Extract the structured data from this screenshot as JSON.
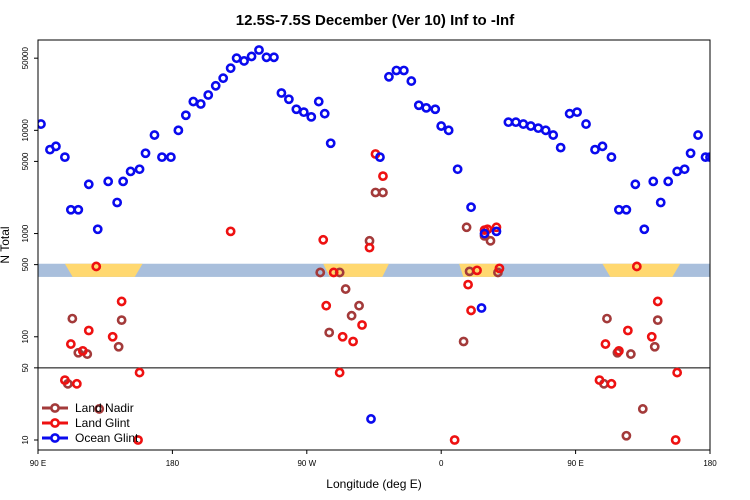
{
  "chart_data": {
    "type": "scatter",
    "title": "12.5S-7.5S December (Ver 10)   Inf to -Inf",
    "xlabel": "Longitude (deg E)",
    "ylabel": "N Total",
    "x_ticks": [
      {
        "value": 90,
        "label": "90 E"
      },
      {
        "value": 180,
        "label": "180"
      },
      {
        "value": 270,
        "label": "90 W"
      },
      {
        "value": 360,
        "label": "0"
      },
      {
        "value": 450,
        "label": "90 E"
      },
      {
        "value": 540,
        "label": "180"
      }
    ],
    "y_ticks": [
      {
        "value": 10,
        "label": "10"
      },
      {
        "value": 50,
        "label": "50"
      },
      {
        "value": 100,
        "label": "100"
      },
      {
        "value": 500,
        "label": "500"
      },
      {
        "value": 1000,
        "label": "1000"
      },
      {
        "value": 5000,
        "label": "5000"
      },
      {
        "value": 10000,
        "label": "10000"
      },
      {
        "value": 50000,
        "label": "50000"
      }
    ],
    "xlim": [
      90,
      540
    ],
    "ylim": [
      8,
      75000
    ],
    "yscale": "log",
    "reference_line": 50,
    "band": {
      "ymin": 380,
      "ymax": 510,
      "color": "#a9bfdc"
    },
    "land_fill_color": "#ffd870",
    "land_regions": [
      {
        "x0": 108,
        "x1": 160
      },
      {
        "x0": 281,
        "x1": 325
      },
      {
        "x0": 372,
        "x1": 400
      },
      {
        "x0": 468,
        "x1": 520
      }
    ],
    "series": [
      {
        "name": "Land Nadir",
        "color": "#a33a3a",
        "points": [
          [
            110,
            35
          ],
          [
            113,
            150
          ],
          [
            117,
            70
          ],
          [
            123,
            68
          ],
          [
            131,
            20
          ],
          [
            144,
            80
          ],
          [
            146,
            145
          ],
          [
            279,
            420
          ],
          [
            285,
            110
          ],
          [
            292,
            420
          ],
          [
            296,
            290
          ],
          [
            300,
            160
          ],
          [
            305,
            200
          ],
          [
            312,
            850
          ],
          [
            316,
            2500
          ],
          [
            321,
            2500
          ],
          [
            375,
            90
          ],
          [
            377,
            1150
          ],
          [
            379,
            430
          ],
          [
            389,
            950
          ],
          [
            393,
            850
          ],
          [
            398,
            420
          ],
          [
            469,
            35
          ],
          [
            471,
            150
          ],
          [
            478,
            70
          ],
          [
            484,
            11
          ],
          [
            487,
            68
          ],
          [
            495,
            20
          ],
          [
            503,
            80
          ],
          [
            505,
            145
          ]
        ]
      },
      {
        "name": "Land Glint",
        "color": "#ee1111",
        "points": [
          [
            108,
            38
          ],
          [
            112,
            85
          ],
          [
            116,
            35
          ],
          [
            120,
            73
          ],
          [
            124,
            115
          ],
          [
            129,
            480
          ],
          [
            140,
            100
          ],
          [
            146,
            220
          ],
          [
            157,
            10
          ],
          [
            158,
            45
          ],
          [
            219,
            1050
          ],
          [
            281,
            870
          ],
          [
            283,
            200
          ],
          [
            288,
            420
          ],
          [
            292,
            45
          ],
          [
            294,
            100
          ],
          [
            301,
            90
          ],
          [
            307,
            130
          ],
          [
            312,
            730
          ],
          [
            316,
            5900
          ],
          [
            321,
            3600
          ],
          [
            369,
            10
          ],
          [
            378,
            320
          ],
          [
            380,
            180
          ],
          [
            384,
            440
          ],
          [
            389,
            1080
          ],
          [
            391,
            1100
          ],
          [
            397,
            1150
          ],
          [
            399,
            460
          ],
          [
            466,
            38
          ],
          [
            470,
            85
          ],
          [
            474,
            35
          ],
          [
            479,
            73
          ],
          [
            485,
            115
          ],
          [
            491,
            480
          ],
          [
            501,
            100
          ],
          [
            505,
            220
          ],
          [
            517,
            10
          ],
          [
            518,
            45
          ]
        ]
      },
      {
        "name": "Ocean Glint",
        "color": "#0a0aee",
        "points": [
          [
            92,
            11500
          ],
          [
            98,
            6500
          ],
          [
            102,
            7000
          ],
          [
            108,
            5500
          ],
          [
            112,
            1700
          ],
          [
            117,
            1700
          ],
          [
            124,
            3000
          ],
          [
            130,
            1100
          ],
          [
            137,
            3200
          ],
          [
            143,
            2000
          ],
          [
            147,
            3200
          ],
          [
            152,
            4000
          ],
          [
            158,
            4200
          ],
          [
            162,
            6000
          ],
          [
            168,
            9000
          ],
          [
            173,
            5500
          ],
          [
            179,
            5500
          ],
          [
            184,
            10000
          ],
          [
            189,
            14000
          ],
          [
            194,
            19000
          ],
          [
            199,
            18000
          ],
          [
            204,
            22000
          ],
          [
            209,
            27000
          ],
          [
            214,
            32000
          ],
          [
            219,
            40000
          ],
          [
            223,
            50000
          ],
          [
            228,
            47000
          ],
          [
            233,
            52000
          ],
          [
            238,
            60000
          ],
          [
            243,
            51000
          ],
          [
            248,
            51000
          ],
          [
            253,
            23000
          ],
          [
            258,
            20000
          ],
          [
            263,
            16000
          ],
          [
            268,
            15000
          ],
          [
            273,
            13500
          ],
          [
            278,
            19000
          ],
          [
            282,
            14500
          ],
          [
            286,
            7500
          ],
          [
            313,
            16
          ],
          [
            319,
            5500
          ],
          [
            325,
            33000
          ],
          [
            330,
            38000
          ],
          [
            335,
            38000
          ],
          [
            340,
            30000
          ],
          [
            345,
            17500
          ],
          [
            350,
            16500
          ],
          [
            356,
            16000
          ],
          [
            360,
            11000
          ],
          [
            365,
            10000
          ],
          [
            371,
            4200
          ],
          [
            380,
            1800
          ],
          [
            387,
            190
          ],
          [
            389,
            1000
          ],
          [
            397,
            1050
          ],
          [
            405,
            12000
          ],
          [
            410,
            12000
          ],
          [
            415,
            11500
          ],
          [
            420,
            11000
          ],
          [
            425,
            10500
          ],
          [
            430,
            10000
          ],
          [
            435,
            9000
          ],
          [
            440,
            6800
          ],
          [
            446,
            14500
          ],
          [
            451,
            15000
          ],
          [
            457,
            11500
          ],
          [
            463,
            6500
          ],
          [
            468,
            7000
          ],
          [
            474,
            5500
          ],
          [
            479,
            1700
          ],
          [
            484,
            1700
          ],
          [
            490,
            3000
          ],
          [
            496,
            1100
          ],
          [
            502,
            3200
          ],
          [
            507,
            2000
          ],
          [
            512,
            3200
          ],
          [
            518,
            4000
          ],
          [
            523,
            4200
          ],
          [
            527,
            6000
          ],
          [
            532,
            9000
          ],
          [
            537,
            5500
          ],
          [
            540,
            5500
          ]
        ]
      }
    ],
    "legend": [
      "Land Nadir",
      "Land Glint",
      "Ocean Glint"
    ],
    "legend_position": "bottom-left"
  }
}
